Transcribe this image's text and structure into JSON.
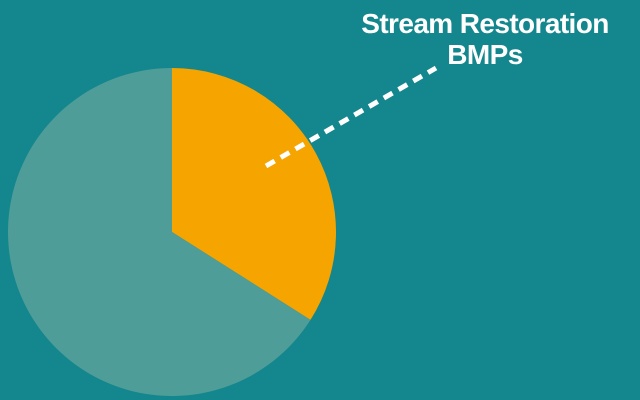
{
  "chart_data": {
    "type": "pie",
    "slices": [
      {
        "label": "Stream Restoration BMPs",
        "value": 34,
        "color": "#f6a400"
      },
      {
        "label": "",
        "value": 66,
        "color": "#4f9d98"
      }
    ],
    "annotation": {
      "line1": "Stream Restoration",
      "line2": "BMPs"
    },
    "background": "#13878d",
    "leader_line_color": "#ffffff"
  }
}
